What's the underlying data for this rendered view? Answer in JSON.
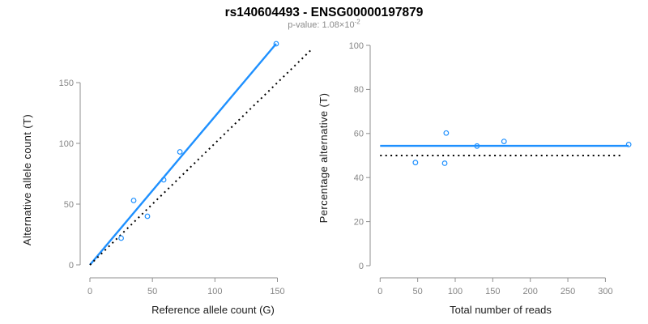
{
  "header": {
    "title": "rs140604493 - ENSG00000197879",
    "pvalue_prefix": "p-value: 1.08×10",
    "pvalue_exponent": "-2"
  },
  "colors": {
    "accent_blue": "#1E90FF",
    "reference_black": "#000000",
    "axis_gray": "#8f8f8f",
    "tick_label_gray": "#858585",
    "label_black": "#1a1a1a",
    "subtitle_gray": "#8a8a8a",
    "title_black": "#000000",
    "background": "#ffffff"
  },
  "chart_data": [
    {
      "type": "scatter",
      "panel": "left",
      "xlabel": "Reference allele count (G)",
      "ylabel": "Alternative allele count (T)",
      "xticks": [
        0,
        50,
        100,
        150
      ],
      "yticks": [
        0,
        50,
        100,
        150
      ],
      "xlim": [
        0,
        178
      ],
      "ylim": [
        0,
        183
      ],
      "grid": false,
      "marker": "open-circle",
      "points": [
        [
          25,
          22
        ],
        [
          35,
          53
        ],
        [
          46,
          40
        ],
        [
          59,
          70
        ],
        [
          72,
          93
        ],
        [
          149,
          182
        ]
      ],
      "lines": [
        {
          "name": "fit-line",
          "style": "solid",
          "color": "accent_blue",
          "x1": 0,
          "y1": 0,
          "x2": 149,
          "y2": 182
        },
        {
          "name": "identity-line",
          "style": "dotted",
          "color": "reference_black",
          "x1": 0,
          "y1": 0,
          "x2": 178,
          "y2": 178
        }
      ]
    },
    {
      "type": "scatter",
      "panel": "right",
      "xlabel": "Total number of reads",
      "ylabel": "Percentage alternative (T)",
      "xticks": [
        0,
        50,
        100,
        150,
        200,
        250,
        300
      ],
      "yticks": [
        0,
        20,
        40,
        60,
        80,
        100
      ],
      "xlim": [
        0,
        331
      ],
      "ylim": [
        0,
        100
      ],
      "grid": false,
      "marker": "open-circle",
      "points": [
        [
          47,
          46.8
        ],
        [
          86,
          46.5
        ],
        [
          88,
          60.2
        ],
        [
          129,
          54.3
        ],
        [
          165,
          56.4
        ],
        [
          331,
          55.0
        ]
      ],
      "lines": [
        {
          "name": "mean-line",
          "style": "solid",
          "color": "accent_blue",
          "x1": 0,
          "y1": 54.4,
          "x2": 331,
          "y2": 54.4
        },
        {
          "name": "expected-line",
          "style": "dotted",
          "color": "reference_black",
          "x1": 0,
          "y1": 50,
          "x2": 322,
          "y2": 50
        }
      ]
    }
  ]
}
